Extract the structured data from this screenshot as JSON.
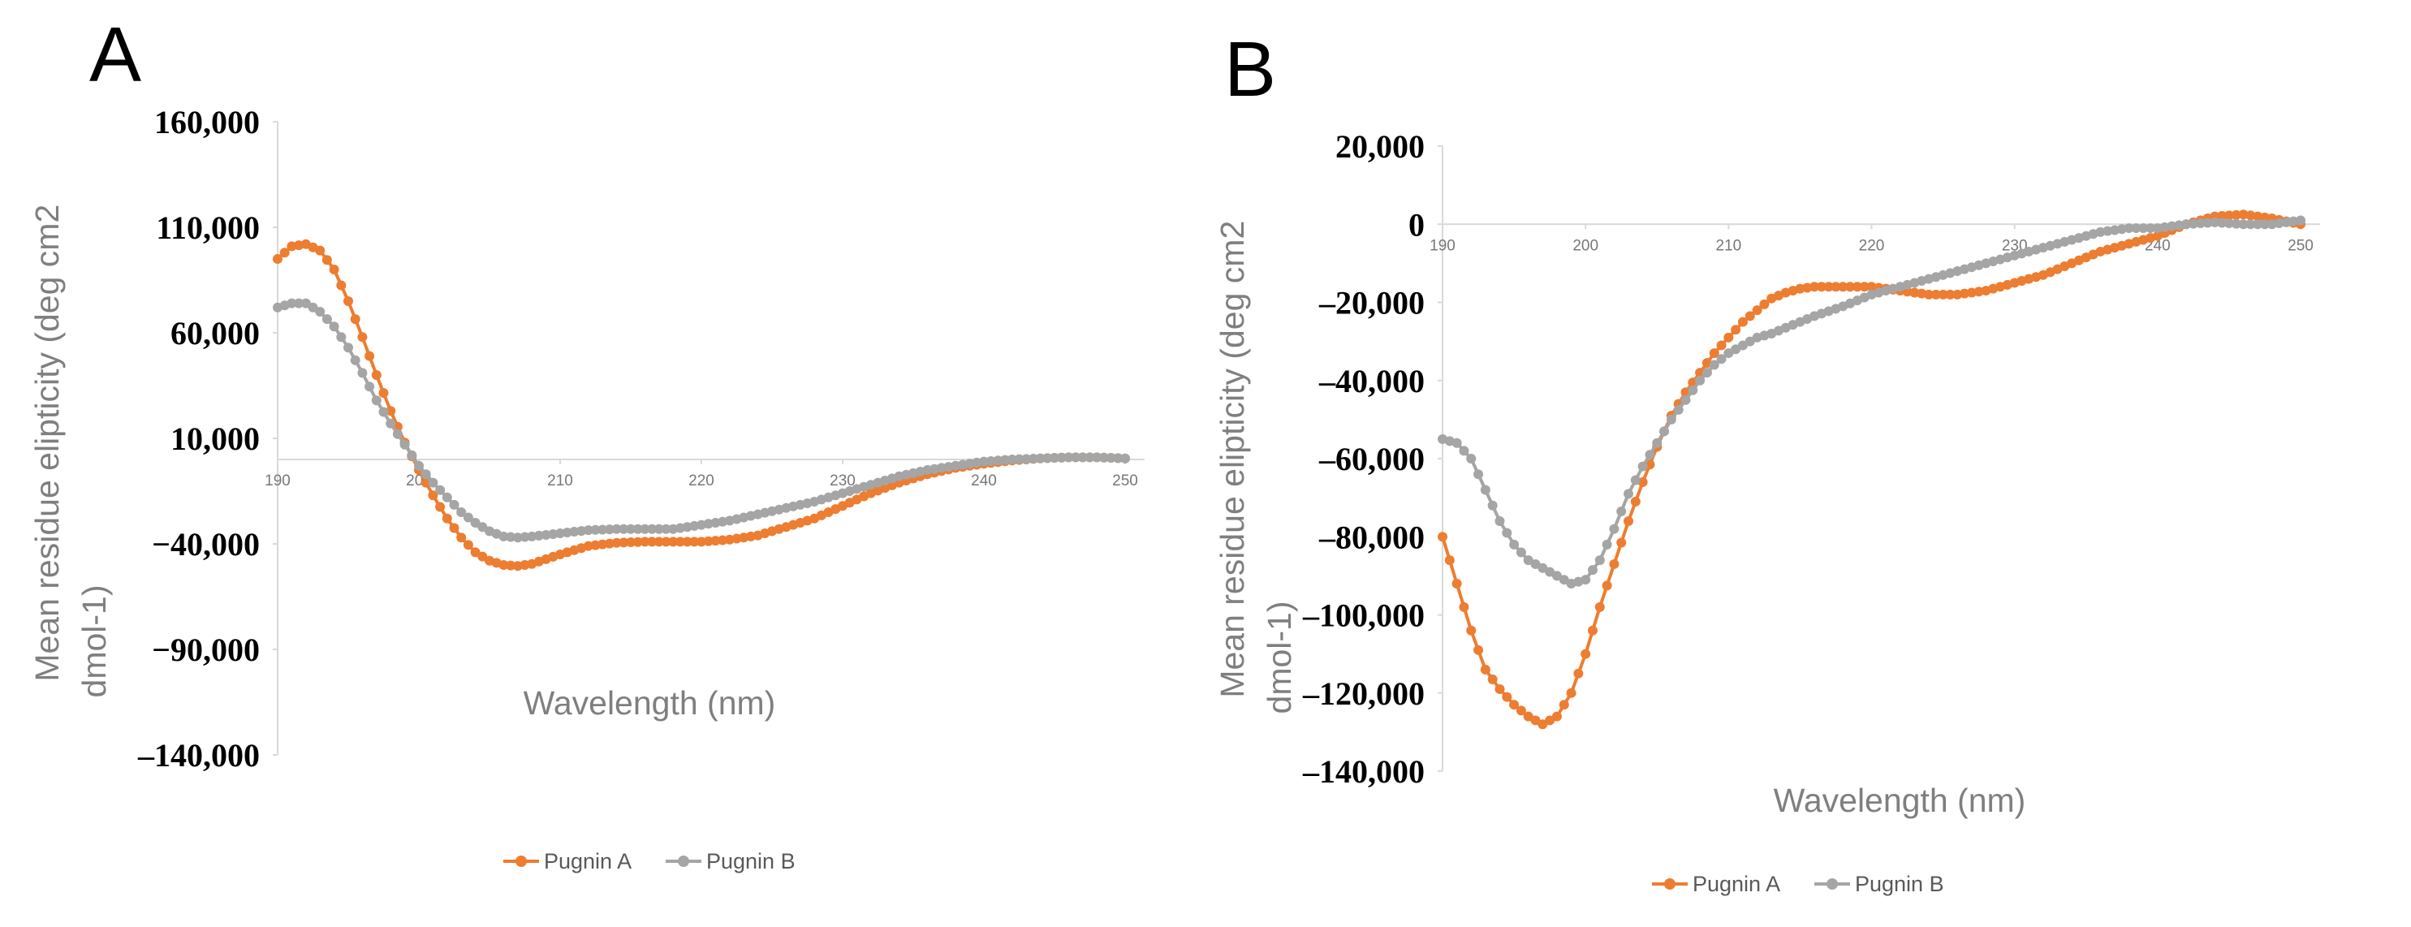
{
  "chart_data": [
    {
      "panel_label": "A",
      "type": "line",
      "xlabel": "Wavelength (nm)",
      "ylabel_lines": [
        "Mean residue elipticity (deg cm2",
        "dmol-1)"
      ],
      "ylim": [
        -140000,
        160000
      ],
      "yticks": [
        160000,
        110000,
        60000,
        10000,
        -40000,
        -90000,
        -140000
      ],
      "ytick_labels": [
        "160,000",
        "110,000",
        "60,000",
        "10,000",
        "−40,000",
        "−90,000",
        "–140,000"
      ],
      "xlim": [
        190,
        250
      ],
      "xticks": [
        190,
        200,
        210,
        220,
        230,
        240,
        250
      ],
      "xtick_labels": [
        "190",
        "200",
        "210",
        "220",
        "230",
        "240",
        "250"
      ],
      "legend": "bottom",
      "series": [
        {
          "name": "Pugnin A",
          "color": "#ED7D31",
          "x": [
            190,
            191,
            192,
            193,
            194,
            195,
            196,
            197,
            198,
            199,
            200,
            201,
            202,
            203,
            204,
            205,
            206,
            207,
            208,
            210,
            212,
            214,
            216,
            218,
            220,
            222,
            224,
            226,
            228,
            230,
            232,
            234,
            236,
            238,
            240,
            242,
            244,
            246,
            248,
            250
          ],
          "y": [
            95000,
            101000,
            102000,
            99000,
            90000,
            75000,
            58000,
            40000,
            23000,
            8000,
            -5000,
            -17000,
            -28000,
            -37000,
            -44000,
            -48000,
            -50000,
            -50500,
            -49500,
            -45000,
            -41000,
            -39500,
            -39000,
            -39000,
            -39000,
            -38000,
            -36000,
            -32000,
            -28000,
            -22000,
            -16000,
            -11000,
            -7000,
            -4000,
            -2000,
            -500,
            500,
            1000,
            1000,
            500
          ]
        },
        {
          "name": "Pugnin B",
          "color": "#A5A5A5",
          "x": [
            190,
            191,
            192,
            193,
            194,
            195,
            196,
            197,
            198,
            199,
            200,
            201,
            202,
            203,
            204,
            205,
            206,
            207,
            208,
            210,
            212,
            214,
            216,
            218,
            220,
            222,
            224,
            226,
            228,
            230,
            232,
            234,
            236,
            238,
            240,
            242,
            244,
            246,
            248,
            250
          ],
          "y": [
            72000,
            74000,
            74000,
            70000,
            63000,
            53000,
            41000,
            28000,
            17000,
            7000,
            -3000,
            -11000,
            -18000,
            -25000,
            -30000,
            -34000,
            -36500,
            -37000,
            -36500,
            -35000,
            -33500,
            -33000,
            -33000,
            -33000,
            -31000,
            -29000,
            -26000,
            -23000,
            -20000,
            -16000,
            -12000,
            -8000,
            -5000,
            -3000,
            -1000,
            0,
            500,
            1000,
            1000,
            500
          ]
        }
      ]
    },
    {
      "panel_label": "B",
      "type": "line",
      "xlabel": "Wavelength (nm)",
      "ylabel_lines": [
        "Mean residue elipticity (deg cm2",
        "dmol-1)"
      ],
      "ylim": [
        -140000,
        20000
      ],
      "yticks": [
        20000,
        0,
        -20000,
        -40000,
        -60000,
        -80000,
        -100000,
        -120000,
        -140000
      ],
      "ytick_labels": [
        "20,000",
        "0",
        "–20,000",
        "–40,000",
        "–60,000",
        "–80,000",
        "–100,000",
        "–120,000",
        "–140,000"
      ],
      "xlim": [
        190,
        250
      ],
      "xticks": [
        190,
        200,
        210,
        220,
        230,
        240,
        250
      ],
      "xtick_labels": [
        "190",
        "200",
        "210",
        "220",
        "230",
        "240",
        "250"
      ],
      "legend": "bottom",
      "series": [
        {
          "name": "Pugnin A",
          "color": "#ED7D31",
          "x": [
            190,
            191,
            192,
            193,
            194,
            195,
            196,
            197,
            198,
            199,
            200,
            201,
            202,
            203,
            204,
            205,
            206,
            207,
            208,
            209,
            210,
            211,
            212,
            213,
            214,
            215,
            216,
            217,
            218,
            220,
            222,
            224,
            226,
            228,
            230,
            232,
            234,
            236,
            238,
            240,
            242,
            244,
            246,
            248,
            250
          ],
          "y": [
            -80000,
            -92000,
            -104000,
            -114000,
            -119000,
            -123000,
            -126000,
            -128000,
            -126000,
            -120000,
            -110000,
            -98000,
            -87000,
            -76000,
            -66000,
            -57000,
            -49000,
            -43000,
            -38000,
            -33000,
            -29000,
            -25000,
            -22000,
            -19000,
            -17500,
            -16500,
            -16000,
            -16000,
            -16000,
            -16000,
            -17000,
            -18000,
            -18000,
            -17000,
            -15000,
            -13000,
            -10000,
            -7000,
            -5000,
            -3000,
            0,
            2000,
            2500,
            1500,
            0
          ]
        },
        {
          "name": "Pugnin B",
          "color": "#A5A5A5",
          "x": [
            190,
            191,
            192,
            193,
            194,
            195,
            196,
            197,
            198,
            199,
            200,
            201,
            202,
            203,
            204,
            205,
            206,
            207,
            208,
            209,
            210,
            211,
            212,
            213,
            214,
            215,
            216,
            218,
            220,
            222,
            224,
            226,
            228,
            230,
            232,
            234,
            236,
            238,
            240,
            242,
            244,
            246,
            248,
            250
          ],
          "y": [
            -55000,
            -56000,
            -60000,
            -68000,
            -76000,
            -82000,
            -86000,
            -88000,
            -90000,
            -92000,
            -91000,
            -86000,
            -78000,
            -69000,
            -62000,
            -56000,
            -50000,
            -45000,
            -40000,
            -36000,
            -33000,
            -31000,
            -29000,
            -28000,
            -26500,
            -25000,
            -23500,
            -21000,
            -18000,
            -16000,
            -14000,
            -12000,
            -10000,
            -8000,
            -6000,
            -4000,
            -2000,
            -1000,
            -1000,
            0,
            500,
            0,
            0,
            1000
          ]
        }
      ]
    }
  ]
}
